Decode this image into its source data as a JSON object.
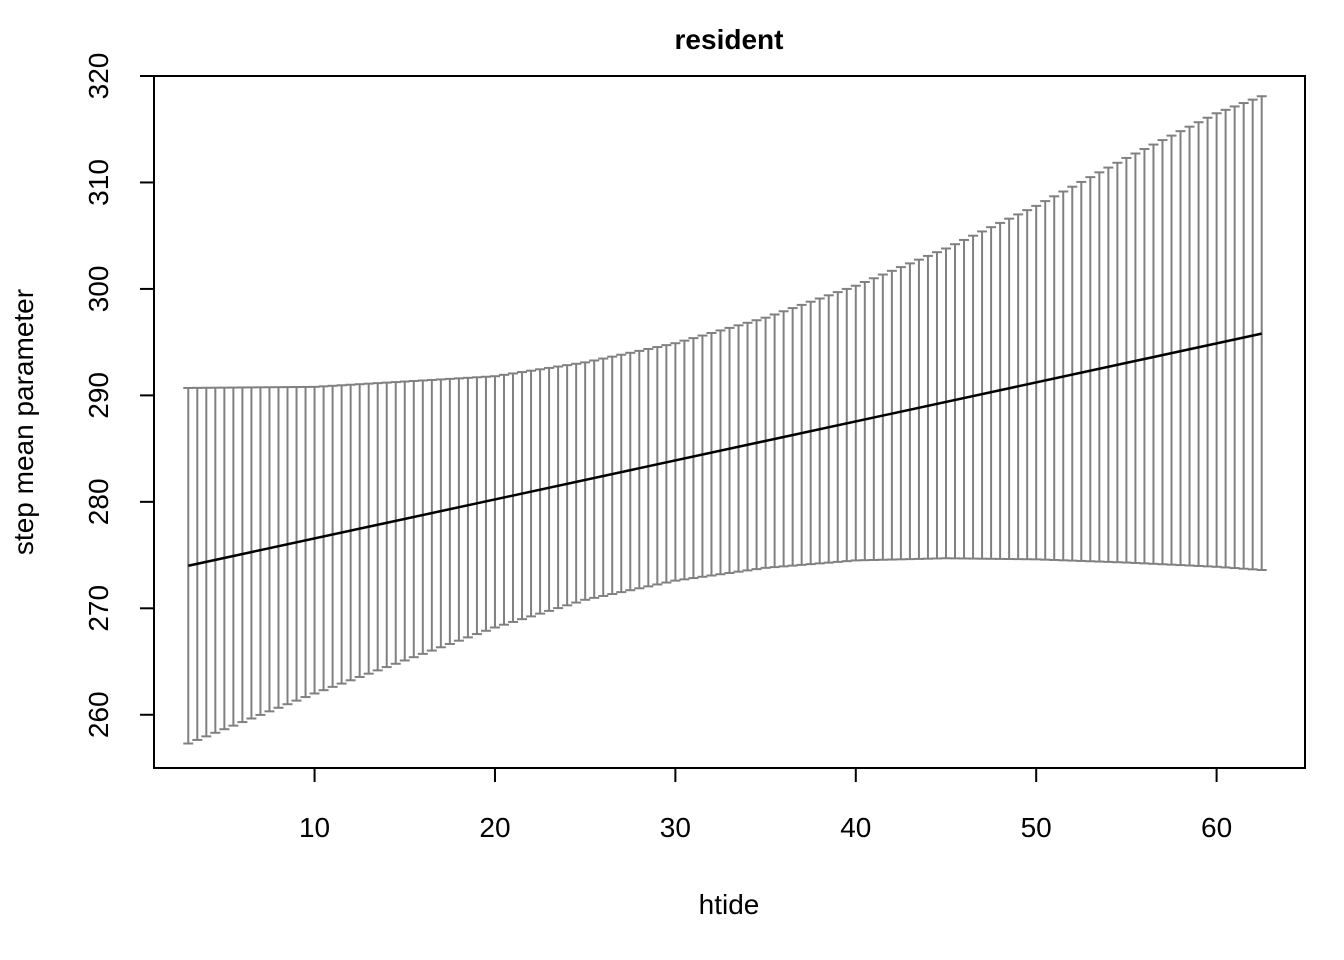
{
  "chart_data": {
    "type": "line",
    "title": "resident",
    "xlabel": "htide",
    "ylabel": "step mean parameter",
    "xlim": [
      1.1,
      64.9
    ],
    "ylim": [
      255,
      320
    ],
    "x_ticks": [
      "10",
      "20",
      "30",
      "40",
      "50",
      "60"
    ],
    "y_ticks": [
      "260",
      "270",
      "280",
      "290",
      "300",
      "310",
      "320"
    ],
    "x_range": [
      3.0,
      62.5
    ],
    "n_points": 120,
    "series": [
      {
        "type": "line",
        "x_start": 3.0,
        "x_end": 62.5,
        "y_start": 274.0,
        "y_end": 295.8
      }
    ],
    "confidence_interval": {
      "type": "errorbar",
      "upper": [
        [
          3,
          290.7
        ],
        [
          10,
          290.8
        ],
        [
          20,
          291.8
        ],
        [
          25,
          293.1
        ],
        [
          30,
          294.9
        ],
        [
          35,
          297.3
        ],
        [
          40,
          300.3
        ],
        [
          45,
          303.8
        ],
        [
          50,
          307.8
        ],
        [
          55,
          312.3
        ],
        [
          60,
          316.5
        ],
        [
          62.5,
          318.1
        ]
      ],
      "lower": [
        [
          3,
          257.3
        ],
        [
          10,
          262.0
        ],
        [
          20,
          268.2
        ],
        [
          25,
          270.8
        ],
        [
          30,
          272.6
        ],
        [
          35,
          273.8
        ],
        [
          40,
          274.5
        ],
        [
          45,
          274.7
        ],
        [
          50,
          274.6
        ],
        [
          55,
          274.3
        ],
        [
          60,
          273.9
        ],
        [
          62.5,
          273.6
        ]
      ]
    },
    "colors": {
      "line": "#000000",
      "errorbar": "#808080"
    },
    "grid": false,
    "legend": false
  }
}
